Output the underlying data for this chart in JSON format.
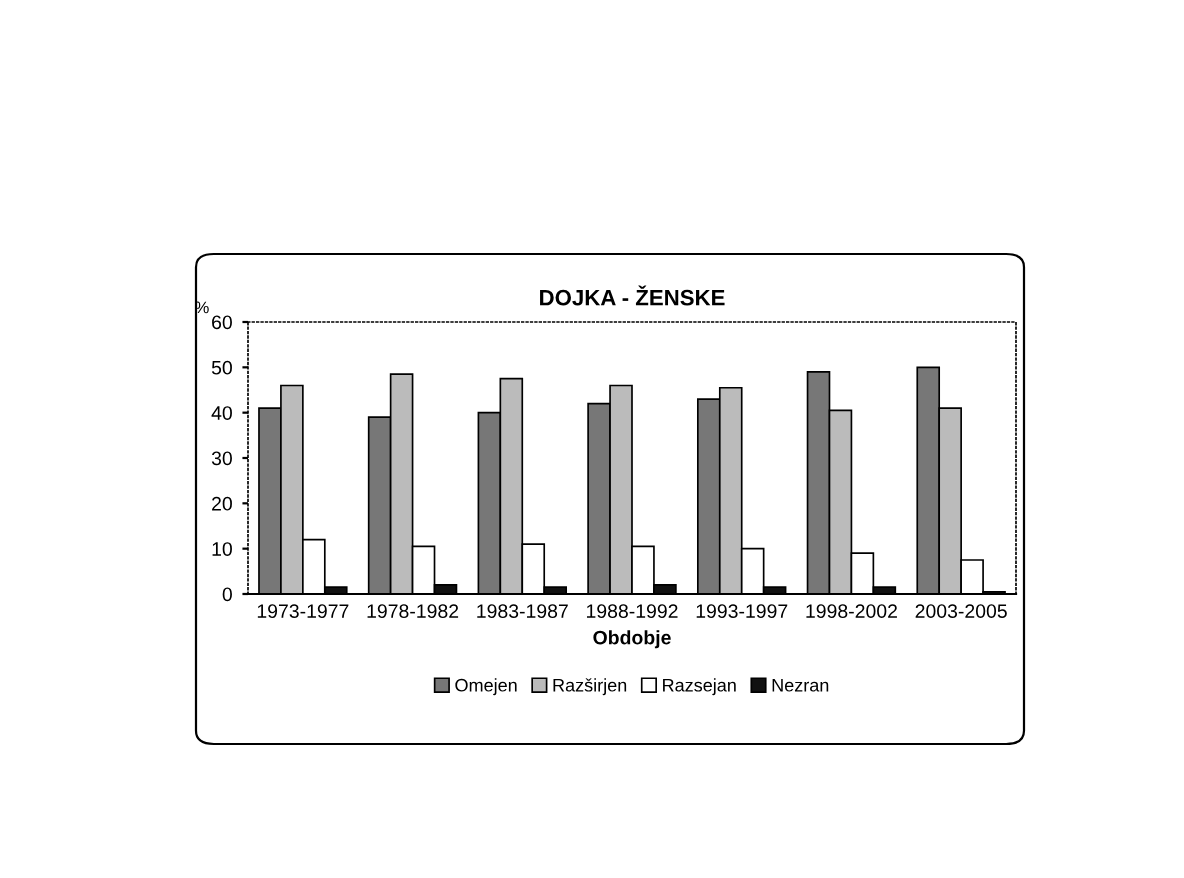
{
  "chart_data": {
    "type": "bar",
    "title": "DOJKA - ŽENSKE",
    "xlabel": "Obdobje",
    "ylabel": "%",
    "categories": [
      "1973-1977",
      "1978-1982",
      "1983-1987",
      "1988-1992",
      "1993-1997",
      "1998-2002",
      "2003-2005"
    ],
    "series": [
      {
        "name": "Omejen",
        "color": "#777777",
        "values": [
          41,
          39,
          40,
          42,
          43,
          49,
          50
        ]
      },
      {
        "name": "Razširjen",
        "color": "#bbbbbb",
        "values": [
          46,
          48.5,
          47.5,
          46,
          45.5,
          40.5,
          41
        ]
      },
      {
        "name": "Razsejan",
        "color": "#ffffff",
        "values": [
          12,
          10.5,
          11,
          10.5,
          10,
          9,
          7.5
        ]
      },
      {
        "name": "Nezran",
        "color": "#111111",
        "values": [
          1.5,
          2,
          1.5,
          2,
          1.5,
          1.5,
          0.5
        ]
      }
    ],
    "ylim": [
      0,
      60
    ],
    "yticks": [
      0,
      10,
      20,
      30,
      40,
      50,
      60
    ],
    "grid": false,
    "legend": "bottom"
  }
}
